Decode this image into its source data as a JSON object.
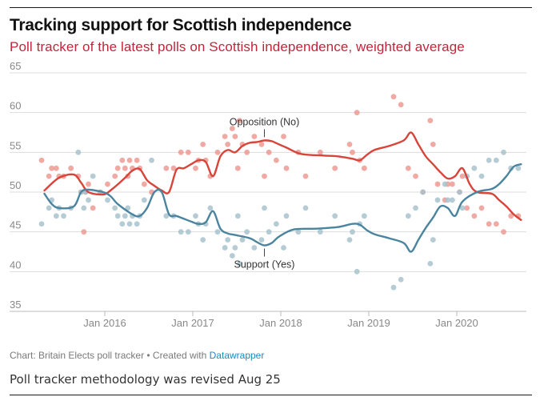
{
  "header": {
    "title": "Tracking support for Scottish independence",
    "subtitle": "Poll tracker of the latest polls on Scottish independence, weighted average"
  },
  "colors": {
    "opposition": "#d9443a",
    "opposition_dots": "#ee9a94",
    "support": "#4a849e",
    "support_dots": "#a8c3ce",
    "subtitle": "#c0263a",
    "grid": "#dddddd",
    "axis_text": "#888888"
  },
  "chart_data": {
    "type": "line",
    "title": "",
    "xlabel": "",
    "ylabel": "",
    "ylim": [
      35,
      65
    ],
    "y_ticks": [
      "65",
      "60",
      "55",
      "50",
      "45",
      "40",
      "35"
    ],
    "x_range": [
      "2015-04",
      "2020-09"
    ],
    "x_ticks": [
      {
        "label": "Jan 2016",
        "date": "2016-01"
      },
      {
        "label": "Jan 2017",
        "date": "2017-01"
      },
      {
        "label": "Jan 2018",
        "date": "2018-01"
      },
      {
        "label": "Jan 2019",
        "date": "2019-01"
      },
      {
        "label": "Jan 2020",
        "date": "2020-01"
      }
    ],
    "grid": true,
    "legend": "none",
    "annotations": [
      {
        "text": "Opposition (No)",
        "series": "Opposition (No)",
        "date": "2017-10",
        "value": 56.5
      },
      {
        "text": "Support (Yes)",
        "series": "Support (Yes)",
        "date": "2017-10",
        "value": 43.3
      }
    ],
    "series": [
      {
        "name": "Opposition (No)",
        "points": [
          [
            "2015-04",
            50.2
          ],
          [
            "2015-06",
            51.8
          ],
          [
            "2015-08",
            52.2
          ],
          [
            "2015-09",
            51.2
          ],
          [
            "2015-10",
            50.0
          ],
          [
            "2015-12",
            49.7
          ],
          [
            "2016-01",
            50.2
          ],
          [
            "2016-03",
            51.8
          ],
          [
            "2016-04",
            52.7
          ],
          [
            "2016-05",
            52.9
          ],
          [
            "2016-06",
            51.5
          ],
          [
            "2016-07",
            50.8
          ],
          [
            "2016-08",
            50.2
          ],
          [
            "2016-09",
            50.0
          ],
          [
            "2016-10",
            52.8
          ],
          [
            "2016-11",
            53.0
          ],
          [
            "2016-12",
            53.5
          ],
          [
            "2017-01",
            54.0
          ],
          [
            "2017-02",
            53.8
          ],
          [
            "2017-03",
            52.0
          ],
          [
            "2017-04",
            54.5
          ],
          [
            "2017-05",
            55.3
          ],
          [
            "2017-06",
            55.0
          ],
          [
            "2017-07",
            55.8
          ],
          [
            "2017-08",
            56.2
          ],
          [
            "2017-09",
            56.3
          ],
          [
            "2017-10",
            56.5
          ],
          [
            "2017-11",
            56.4
          ],
          [
            "2017-12",
            56.0
          ],
          [
            "2018-01",
            55.6
          ],
          [
            "2018-03",
            54.8
          ],
          [
            "2018-06",
            54.6
          ],
          [
            "2018-08",
            54.5
          ],
          [
            "2018-10",
            54.2
          ],
          [
            "2018-11",
            54.0
          ],
          [
            "2018-12",
            54.7
          ],
          [
            "2019-01",
            55.3
          ],
          [
            "2019-03",
            55.8
          ],
          [
            "2019-05",
            56.5
          ],
          [
            "2019-06",
            57.5
          ],
          [
            "2019-07",
            56.0
          ],
          [
            "2019-08",
            54.5
          ],
          [
            "2019-09",
            53.5
          ],
          [
            "2019-10",
            52.5
          ],
          [
            "2019-11",
            51.7
          ],
          [
            "2019-12",
            52.0
          ],
          [
            "2020-01",
            53.0
          ],
          [
            "2020-02",
            51.0
          ],
          [
            "2020-03",
            50.0
          ],
          [
            "2020-05",
            49.8
          ],
          [
            "2020-06",
            49.0
          ],
          [
            "2020-07",
            48.2
          ],
          [
            "2020-08",
            47.2
          ],
          [
            "2020-09",
            46.5
          ]
        ]
      },
      {
        "name": "Support (Yes)",
        "points": [
          [
            "2015-04",
            49.8
          ],
          [
            "2015-05",
            48.5
          ],
          [
            "2015-06",
            48.0
          ],
          [
            "2015-08",
            48.2
          ],
          [
            "2015-09",
            50.0
          ],
          [
            "2015-10",
            50.3
          ],
          [
            "2015-12",
            50.0
          ],
          [
            "2016-01",
            49.5
          ],
          [
            "2016-02",
            48.5
          ],
          [
            "2016-04",
            47.2
          ],
          [
            "2016-05",
            47.0
          ],
          [
            "2016-06",
            48.0
          ],
          [
            "2016-07",
            50.0
          ],
          [
            "2016-08",
            50.0
          ],
          [
            "2016-09",
            47.2
          ],
          [
            "2016-10",
            47.0
          ],
          [
            "2016-12",
            46.3
          ],
          [
            "2017-01",
            46.0
          ],
          [
            "2017-02",
            46.2
          ],
          [
            "2017-03",
            47.6
          ],
          [
            "2017-04",
            45.4
          ],
          [
            "2017-05",
            44.8
          ],
          [
            "2017-06",
            44.6
          ],
          [
            "2017-08",
            44.2
          ],
          [
            "2017-09",
            43.7
          ],
          [
            "2017-10",
            43.3
          ],
          [
            "2017-11",
            43.6
          ],
          [
            "2017-12",
            44.4
          ],
          [
            "2018-02",
            45.3
          ],
          [
            "2018-05",
            45.4
          ],
          [
            "2018-08",
            45.6
          ],
          [
            "2018-10",
            46.0
          ],
          [
            "2018-11",
            45.9
          ],
          [
            "2018-12",
            45.2
          ],
          [
            "2019-01",
            44.7
          ],
          [
            "2019-03",
            44.2
          ],
          [
            "2019-05",
            43.6
          ],
          [
            "2019-06",
            42.5
          ],
          [
            "2019-07",
            44.0
          ],
          [
            "2019-08",
            45.5
          ],
          [
            "2019-09",
            46.8
          ],
          [
            "2019-10",
            48.2
          ],
          [
            "2019-11",
            48.0
          ],
          [
            "2019-12",
            47.0
          ],
          [
            "2020-01",
            48.8
          ],
          [
            "2020-03",
            50.0
          ],
          [
            "2020-05",
            50.4
          ],
          [
            "2020-06",
            51.0
          ],
          [
            "2020-07",
            52.0
          ],
          [
            "2020-08",
            53.2
          ],
          [
            "2020-09",
            53.5
          ]
        ]
      }
    ],
    "polls_opposition": [
      [
        "2015-04",
        54
      ],
      [
        "2015-05",
        52
      ],
      [
        "2015-05",
        53
      ],
      [
        "2015-06",
        53
      ],
      [
        "2015-06",
        52
      ],
      [
        "2015-07",
        52
      ],
      [
        "2015-08",
        53
      ],
      [
        "2015-09",
        52
      ],
      [
        "2015-09",
        50
      ],
      [
        "2015-09",
        45
      ],
      [
        "2015-10",
        50
      ],
      [
        "2015-10",
        51
      ],
      [
        "2015-11",
        48
      ],
      [
        "2015-12",
        50
      ],
      [
        "2016-01",
        51
      ],
      [
        "2016-02",
        52
      ],
      [
        "2016-02",
        53
      ],
      [
        "2016-03",
        54
      ],
      [
        "2016-03",
        53
      ],
      [
        "2016-03",
        52
      ],
      [
        "2016-04",
        54
      ],
      [
        "2016-04",
        53
      ],
      [
        "2016-05",
        54
      ],
      [
        "2016-05",
        53
      ],
      [
        "2016-06",
        51
      ],
      [
        "2016-07",
        50
      ],
      [
        "2016-09",
        53
      ],
      [
        "2016-10",
        53
      ],
      [
        "2016-11",
        55
      ],
      [
        "2016-12",
        55
      ],
      [
        "2017-01",
        53
      ],
      [
        "2017-01",
        54
      ],
      [
        "2017-02",
        56
      ],
      [
        "2017-02",
        54
      ],
      [
        "2017-03",
        52
      ],
      [
        "2017-04",
        55
      ],
      [
        "2017-05",
        57
      ],
      [
        "2017-05",
        56
      ],
      [
        "2017-06",
        58
      ],
      [
        "2017-06",
        57
      ],
      [
        "2017-06",
        53
      ],
      [
        "2017-07",
        59
      ],
      [
        "2017-07",
        56
      ],
      [
        "2017-08",
        55
      ],
      [
        "2017-09",
        57
      ],
      [
        "2017-10",
        56
      ],
      [
        "2017-10",
        52
      ],
      [
        "2017-11",
        55
      ],
      [
        "2017-12",
        54
      ],
      [
        "2018-01",
        57
      ],
      [
        "2018-01",
        53
      ],
      [
        "2018-03",
        55
      ],
      [
        "2018-04",
        52
      ],
      [
        "2018-06",
        55
      ],
      [
        "2018-08",
        53
      ],
      [
        "2018-10",
        56
      ],
      [
        "2018-10",
        55
      ],
      [
        "2018-11",
        60
      ],
      [
        "2018-11",
        54
      ],
      [
        "2018-12",
        53
      ],
      [
        "2019-04",
        62
      ],
      [
        "2019-05",
        61
      ],
      [
        "2019-06",
        53
      ],
      [
        "2019-07",
        52
      ],
      [
        "2019-08",
        50
      ],
      [
        "2019-09",
        59
      ],
      [
        "2019-09",
        56
      ],
      [
        "2019-10",
        51
      ],
      [
        "2019-11",
        49
      ],
      [
        "2019-11",
        51
      ],
      [
        "2019-12",
        51
      ],
      [
        "2020-01",
        50
      ],
      [
        "2020-01",
        52
      ],
      [
        "2020-02",
        48
      ],
      [
        "2020-03",
        47
      ],
      [
        "2020-04",
        48
      ],
      [
        "2020-05",
        46
      ],
      [
        "2020-06",
        46
      ],
      [
        "2020-07",
        45
      ],
      [
        "2020-08",
        47
      ],
      [
        "2020-09",
        47
      ]
    ],
    "polls_support": [
      [
        "2015-04",
        46
      ],
      [
        "2015-05",
        48
      ],
      [
        "2015-05",
        49
      ],
      [
        "2015-06",
        47
      ],
      [
        "2015-06",
        48
      ],
      [
        "2015-07",
        47
      ],
      [
        "2015-08",
        48
      ],
      [
        "2015-09",
        55
      ],
      [
        "2015-09",
        50
      ],
      [
        "2015-09",
        48
      ],
      [
        "2015-10",
        50
      ],
      [
        "2015-10",
        49
      ],
      [
        "2015-11",
        52
      ],
      [
        "2015-12",
        50
      ],
      [
        "2016-01",
        49
      ],
      [
        "2016-02",
        48
      ],
      [
        "2016-02",
        47
      ],
      [
        "2016-03",
        46
      ],
      [
        "2016-03",
        47
      ],
      [
        "2016-03",
        48
      ],
      [
        "2016-04",
        46
      ],
      [
        "2016-04",
        47
      ],
      [
        "2016-05",
        46
      ],
      [
        "2016-05",
        47
      ],
      [
        "2016-06",
        49
      ],
      [
        "2016-07",
        54
      ],
      [
        "2016-09",
        47
      ],
      [
        "2016-10",
        47
      ],
      [
        "2016-11",
        45
      ],
      [
        "2016-12",
        45
      ],
      [
        "2017-01",
        47
      ],
      [
        "2017-01",
        46
      ],
      [
        "2017-02",
        44
      ],
      [
        "2017-02",
        46
      ],
      [
        "2017-03",
        48
      ],
      [
        "2017-04",
        45
      ],
      [
        "2017-05",
        43
      ],
      [
        "2017-05",
        44
      ],
      [
        "2017-06",
        42
      ],
      [
        "2017-06",
        43
      ],
      [
        "2017-06",
        47
      ],
      [
        "2017-07",
        41
      ],
      [
        "2017-07",
        44
      ],
      [
        "2017-08",
        45
      ],
      [
        "2017-09",
        43
      ],
      [
        "2017-10",
        44
      ],
      [
        "2017-10",
        48
      ],
      [
        "2017-11",
        45
      ],
      [
        "2017-12",
        46
      ],
      [
        "2018-01",
        43
      ],
      [
        "2018-01",
        47
      ],
      [
        "2018-03",
        45
      ],
      [
        "2018-04",
        48
      ],
      [
        "2018-06",
        45
      ],
      [
        "2018-08",
        47
      ],
      [
        "2018-10",
        44
      ],
      [
        "2018-10",
        45
      ],
      [
        "2018-11",
        40
      ],
      [
        "2018-11",
        46
      ],
      [
        "2018-12",
        47
      ],
      [
        "2019-04",
        38
      ],
      [
        "2019-05",
        39
      ],
      [
        "2019-06",
        47
      ],
      [
        "2019-07",
        48
      ],
      [
        "2019-08",
        50
      ],
      [
        "2019-09",
        41
      ],
      [
        "2019-09",
        44
      ],
      [
        "2019-10",
        49
      ],
      [
        "2019-11",
        51
      ],
      [
        "2019-11",
        49
      ],
      [
        "2019-12",
        49
      ],
      [
        "2020-01",
        50
      ],
      [
        "2020-01",
        48
      ],
      [
        "2020-02",
        52
      ],
      [
        "2020-03",
        53
      ],
      [
        "2020-04",
        52
      ],
      [
        "2020-05",
        54
      ],
      [
        "2020-06",
        54
      ],
      [
        "2020-07",
        55
      ],
      [
        "2020-08",
        53
      ],
      [
        "2020-09",
        53
      ]
    ]
  },
  "footer": {
    "credit_prefix": "Chart: Britain Elects poll tracker • Created with ",
    "credit_link": "Datawrapper",
    "note": "Poll tracker methodology was revised Aug 25"
  }
}
